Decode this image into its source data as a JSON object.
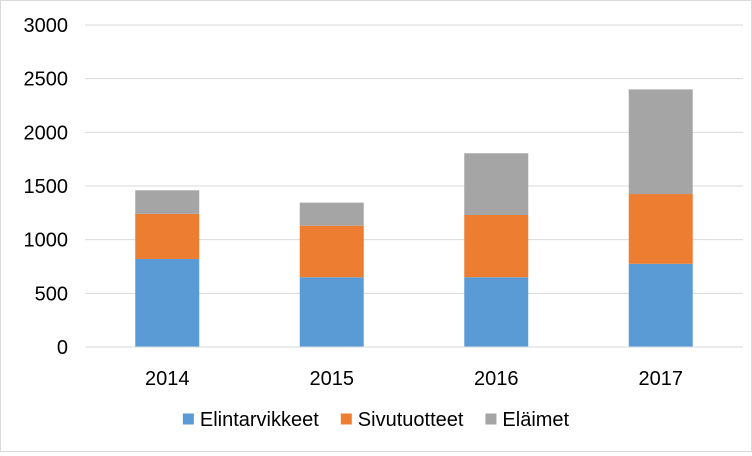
{
  "chart_data": {
    "type": "bar",
    "stacked": true,
    "categories": [
      "2014",
      "2015",
      "2016",
      "2017"
    ],
    "series": [
      {
        "name": "Elintarvikkeet",
        "color": "#5b9bd5",
        "values": [
          820,
          650,
          650,
          775
        ]
      },
      {
        "name": "Sivutuotteet",
        "color": "#ed7d31",
        "values": [
          420,
          480,
          580,
          650
        ]
      },
      {
        "name": "Eläimet",
        "color": "#a5a5a5",
        "values": [
          220,
          215,
          575,
          975
        ]
      }
    ],
    "ylim": [
      0,
      3000
    ],
    "yticks": [
      "0",
      "500",
      "1000",
      "1500",
      "2000",
      "2500",
      "3000"
    ],
    "ytick_values": [
      0,
      500,
      1000,
      1500,
      2000,
      2500,
      3000
    ],
    "grid": true,
    "legend_position": "bottom",
    "gridline_color": "#d9d9d9"
  }
}
